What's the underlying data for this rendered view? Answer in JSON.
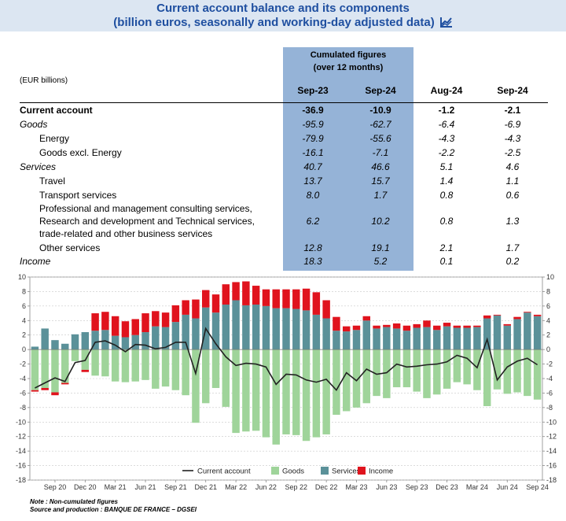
{
  "header": {
    "title_line1": "Current account balance and its components",
    "title_line2": "(billion euros, seasonally and working-day adjusted data)"
  },
  "table": {
    "unit_label": "(EUR billions)",
    "cumulated_header_line1": "Cumulated figures",
    "cumulated_header_line2": "(over 12 months)",
    "columns": [
      "Sep-23",
      "Sep-24",
      "Aug-24",
      "Sep-24"
    ],
    "rows": [
      {
        "label": "Current account",
        "values": [
          "-36.9",
          "-10.9",
          "-1.2",
          "-2.1"
        ]
      },
      {
        "label": "Goods",
        "values": [
          "-95.9",
          "-62.7",
          "-6.4",
          "-6.9"
        ]
      },
      {
        "label": "Energy",
        "values": [
          "-79.9",
          "-55.6",
          "-4.3",
          "-4.3"
        ]
      },
      {
        "label": "Goods excl. Energy",
        "values": [
          "-16.1",
          "-7.1",
          "-2.2",
          "-2.5"
        ]
      },
      {
        "label": "Services",
        "values": [
          "40.7",
          "46.6",
          "5.1",
          "4.6"
        ]
      },
      {
        "label": "Travel",
        "values": [
          "13.7",
          "15.7",
          "1.4",
          "1.1"
        ]
      },
      {
        "label": "Transport services",
        "values": [
          "8.0",
          "1.7",
          "0.8",
          "0.6"
        ]
      },
      {
        "label_lines": [
          "Professional and management consulting services,",
          "Research and development and Technical services,",
          "trade-related and other business services"
        ],
        "values": [
          "6.2",
          "10.2",
          "0.8",
          "1.3"
        ]
      },
      {
        "label": "Other services",
        "values": [
          "12.8",
          "19.1",
          "2.1",
          "1.7"
        ]
      },
      {
        "label": "Income",
        "values": [
          "18.3",
          "5.2",
          "0.1",
          "0.2"
        ]
      }
    ]
  },
  "chart_data": {
    "type": "bar",
    "x": [
      "Jul 20",
      "Aug 20",
      "Sep 20",
      "Oct 20",
      "Nov 20",
      "Dec 20",
      "Jan 21",
      "Feb 21",
      "Mar 21",
      "Apr 21",
      "May 21",
      "Jun 21",
      "Jul 21",
      "Aug 21",
      "Sep 21",
      "Oct 21",
      "Nov 21",
      "Dec 21",
      "Jan 22",
      "Feb 22",
      "Mar 22",
      "Apr 22",
      "May 22",
      "Jun 22",
      "Jul 22",
      "Aug 22",
      "Sep 22",
      "Oct 22",
      "Nov 22",
      "Dec 22",
      "Jan 23",
      "Feb 23",
      "Mar 23",
      "Apr 23",
      "May 23",
      "Jun 23",
      "Jul 23",
      "Aug 23",
      "Sep 23",
      "Oct 23",
      "Nov 23",
      "Dec 23",
      "Jan 24",
      "Feb 24",
      "Mar 24",
      "Apr 24",
      "May 24",
      "Jun 24",
      "Jul 24",
      "Aug 24",
      "Sep 24"
    ],
    "tick_labels": [
      "Sep 20",
      "Dec 20",
      "Mar 21",
      "Jun 21",
      "Sep 21",
      "Dec 21",
      "Mar 22",
      "Jun 22",
      "Sep 22",
      "Dec 22",
      "Mar 23",
      "Jun 23",
      "Sep 23",
      "Dec 23",
      "Mar 24",
      "Jun 24",
      "Sep 24"
    ],
    "series": [
      {
        "name": "Goods",
        "kind": "bar",
        "color": "#9fd49a",
        "values": [
          -5.6,
          -5.3,
          -5.9,
          -4.6,
          -1.6,
          -2.8,
          -3.6,
          -3.7,
          -4.4,
          -4.5,
          -4.4,
          -4.2,
          -5.4,
          -5.1,
          -5.6,
          -6.3,
          -10.1,
          -7.4,
          -5.3,
          -7.9,
          -11.5,
          -11.3,
          -11.2,
          -12.1,
          -13.1,
          -11.7,
          -11.8,
          -12.6,
          -12.1,
          -11.7,
          -9.0,
          -8.5,
          -8.0,
          -7.4,
          -6.4,
          -6.7,
          -5.2,
          -5.2,
          -5.8,
          -6.7,
          -6.2,
          -5.4,
          -4.5,
          -4.8,
          -5.6,
          -7.8,
          -5.5,
          -6.1,
          -5.9,
          -6.4,
          -6.9
        ]
      },
      {
        "name": "Services",
        "kind": "bar",
        "color": "#5b9199",
        "values": [
          0.4,
          2.9,
          1.3,
          0.8,
          2.1,
          2.4,
          2.6,
          2.7,
          1.9,
          1.7,
          2.0,
          2.4,
          3.2,
          3.1,
          3.8,
          4.8,
          4.3,
          5.8,
          5.1,
          6.2,
          6.8,
          6.1,
          6.2,
          6.0,
          5.7,
          5.7,
          5.6,
          5.4,
          4.8,
          4.3,
          2.6,
          2.5,
          2.7,
          4.0,
          2.9,
          3.1,
          2.9,
          2.6,
          3.0,
          3.1,
          2.7,
          3.2,
          3.0,
          3.0,
          3.1,
          4.3,
          4.7,
          3.3,
          4.2,
          5.1,
          4.6
        ]
      },
      {
        "name": "Income",
        "kind": "bar",
        "color": "#e0131d",
        "values": [
          -0.2,
          -0.3,
          -0.4,
          -0.2,
          0.0,
          -0.3,
          2.4,
          2.5,
          2.7,
          2.2,
          2.2,
          2.6,
          2.1,
          2.0,
          2.3,
          2.0,
          2.6,
          2.4,
          2.5,
          2.8,
          2.5,
          3.3,
          2.6,
          2.3,
          2.6,
          2.6,
          2.7,
          3.0,
          3.1,
          2.5,
          1.9,
          0.7,
          0.6,
          0.6,
          0.4,
          0.3,
          0.7,
          0.7,
          0.5,
          0.9,
          0.6,
          0.5,
          0.3,
          0.3,
          0.2,
          0.4,
          0.1,
          0.2,
          0.3,
          0.1,
          0.2
        ]
      },
      {
        "name": "Current account",
        "kind": "line",
        "color": "#222222",
        "values": [
          -5.3,
          -4.6,
          -3.9,
          -4.4,
          -1.8,
          -1.5,
          1.0,
          1.2,
          0.6,
          -0.3,
          0.7,
          0.6,
          0.1,
          0.3,
          1.0,
          1.0,
          -3.3,
          2.9,
          0.8,
          -1.0,
          -2.2,
          -1.9,
          -2.0,
          -2.4,
          -4.8,
          -3.4,
          -3.5,
          -4.2,
          -4.5,
          -4.1,
          -5.6,
          -3.2,
          -4.3,
          -2.7,
          -3.4,
          -3.2,
          -2.0,
          -2.4,
          -2.3,
          -2.1,
          -2.0,
          -1.7,
          -0.8,
          -1.2,
          -2.5,
          1.4,
          -4.2,
          -2.4,
          -1.6,
          -1.2,
          -2.1
        ]
      }
    ],
    "ylim": [
      -18,
      10
    ],
    "yticks": [
      -18,
      -16,
      -14,
      -12,
      -10,
      -8,
      -6,
      -4,
      -2,
      0,
      2,
      4,
      6,
      8,
      10
    ],
    "grid": true,
    "legend": [
      {
        "name": "Current account",
        "kind": "line",
        "color": "#222222"
      },
      {
        "name": "Goods",
        "kind": "bar",
        "color": "#9fd49a"
      },
      {
        "name": "Services",
        "kind": "bar",
        "color": "#5b9199"
      },
      {
        "name": "Income",
        "kind": "bar",
        "color": "#e0131d"
      }
    ],
    "legend_position": "bottom-center"
  },
  "notes": {
    "line1": "Note : Non-cumulated figures",
    "line2": "Source and production : BANQUE DE FRANCE – DGSEI"
  }
}
